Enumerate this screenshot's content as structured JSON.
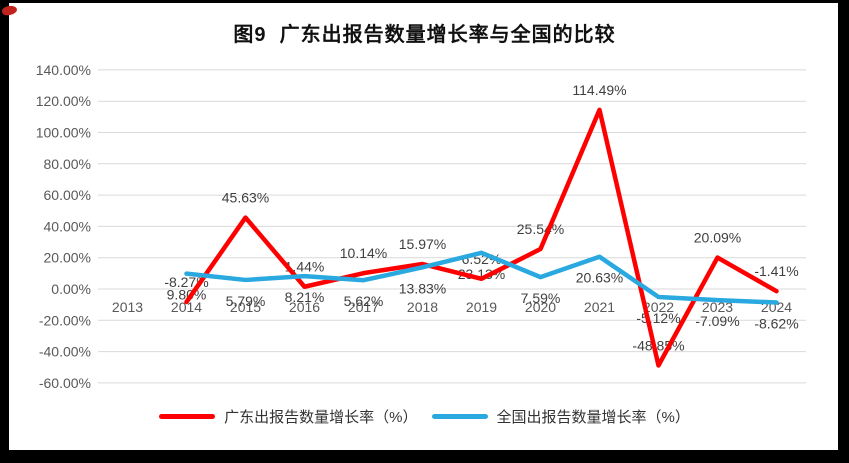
{
  "frame": {
    "border_color": "#000000",
    "smudge_color": "#c0231d"
  },
  "chart_data": {
    "type": "line",
    "title": "图9  广东出报告数量增长率与全国的比较",
    "categories": [
      "2013",
      "2014",
      "2015",
      "2016",
      "2017",
      "2018",
      "2019",
      "2020",
      "2021",
      "2022",
      "2023",
      "2024"
    ],
    "series": [
      {
        "name": "广东出报告数量增长率（%）",
        "color": "#ff0000",
        "values": [
          null,
          -8.27,
          45.63,
          1.44,
          10.14,
          15.97,
          6.52,
          25.54,
          114.49,
          -48.85,
          20.09,
          -1.41
        ],
        "label_position": "above"
      },
      {
        "name": "全国出报告数量增长率（%）",
        "color": "#29a9e0",
        "values": [
          null,
          9.8,
          5.79,
          8.21,
          5.62,
          13.83,
          23.13,
          7.59,
          20.63,
          -5.12,
          -7.09,
          -8.62
        ],
        "label_position": "below"
      }
    ],
    "ylim": [
      -60,
      140
    ],
    "ytick_step": 20,
    "ytick_labels": [
      "140.00%",
      "120.00%",
      "100.00%",
      "80.00%",
      "60.00%",
      "40.00%",
      "20.00%",
      "0.00%",
      "-20.00%",
      "-40.00%",
      "-60.00%"
    ],
    "value_suffix": "%",
    "grid": "horizontal-only",
    "gridline_color": "#d9d9d9",
    "axis_text_color": "#595959",
    "data_label_color": "#404040",
    "legend_position": "bottom"
  }
}
